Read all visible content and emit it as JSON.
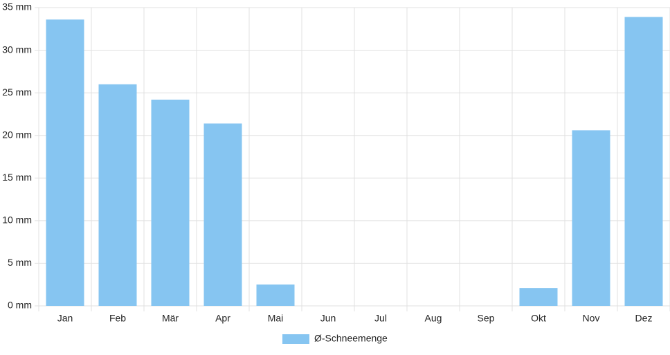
{
  "chart_data": {
    "type": "bar",
    "categories": [
      "Jan",
      "Feb",
      "Mär",
      "Apr",
      "Mai",
      "Jun",
      "Jul",
      "Aug",
      "Sep",
      "Okt",
      "Nov",
      "Dez"
    ],
    "series": [
      {
        "name": "Ø-Schneemenge",
        "color": "#86c5f1",
        "values": [
          33.6,
          26.0,
          24.2,
          21.4,
          2.5,
          0,
          0,
          0,
          0,
          2.1,
          20.6,
          33.9
        ]
      }
    ],
    "ylim": [
      0,
      35
    ],
    "yticks": [
      {
        "value": 0,
        "label": "0 mm"
      },
      {
        "value": 5,
        "label": "5 mm"
      },
      {
        "value": 10,
        "label": "10 mm"
      },
      {
        "value": 15,
        "label": "15 mm"
      },
      {
        "value": 20,
        "label": "20 mm"
      },
      {
        "value": 25,
        "label": "25 mm"
      },
      {
        "value": 30,
        "label": "30 mm"
      },
      {
        "value": 35,
        "label": "35 mm"
      }
    ],
    "grid": true,
    "legend": "bottom"
  }
}
